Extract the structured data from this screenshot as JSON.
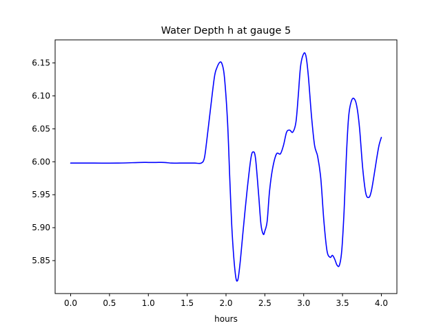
{
  "chart_data": {
    "type": "line",
    "title": "Water Depth h at gauge 5",
    "xlabel": "hours",
    "ylabel": "",
    "xlim": [
      -0.2,
      4.2
    ],
    "ylim": [
      5.8,
      6.185
    ],
    "xticks": [
      0.0,
      0.5,
      1.0,
      1.5,
      2.0,
      2.5,
      3.0,
      3.5,
      4.0
    ],
    "xtick_labels": [
      "0.0",
      "0.5",
      "1.0",
      "1.5",
      "2.0",
      "2.5",
      "3.0",
      "3.5",
      "4.0"
    ],
    "yticks": [
      5.85,
      5.9,
      5.95,
      6.0,
      6.05,
      6.1,
      6.15
    ],
    "ytick_labels": [
      "5.85",
      "5.90",
      "5.95",
      "6.00",
      "6.05",
      "6.10",
      "6.15"
    ],
    "grid": false,
    "series": [
      {
        "color": "#0000ff",
        "x": [
          0.0,
          0.3,
          0.6,
          0.9,
          1.0,
          1.1,
          1.2,
          1.3,
          1.4,
          1.5,
          1.6,
          1.68,
          1.72,
          1.75,
          1.8,
          1.85,
          1.88,
          1.92,
          1.95,
          1.98,
          2.02,
          2.05,
          2.08,
          2.12,
          2.15,
          2.18,
          2.22,
          2.27,
          2.32,
          2.35,
          2.38,
          2.42,
          2.45,
          2.48,
          2.5,
          2.53,
          2.56,
          2.6,
          2.65,
          2.7,
          2.74,
          2.78,
          2.82,
          2.86,
          2.9,
          2.93,
          2.96,
          3.0,
          3.03,
          3.06,
          3.1,
          3.14,
          3.18,
          3.22,
          3.26,
          3.3,
          3.34,
          3.37,
          3.4,
          3.43,
          3.46,
          3.49,
          3.52,
          3.55,
          3.58,
          3.62,
          3.66,
          3.69,
          3.72,
          3.76,
          3.8,
          3.84,
          3.87,
          3.9,
          3.94,
          3.97,
          4.0
        ],
        "y": [
          5.998,
          5.998,
          5.998,
          5.999,
          5.999,
          5.999,
          5.999,
          5.998,
          5.998,
          5.998,
          5.998,
          5.998,
          6.005,
          6.03,
          6.08,
          6.128,
          6.142,
          6.151,
          6.148,
          6.128,
          6.06,
          5.97,
          5.89,
          5.83,
          5.82,
          5.845,
          5.895,
          5.955,
          6.005,
          6.015,
          6.005,
          5.95,
          5.905,
          5.89,
          5.895,
          5.91,
          5.955,
          5.99,
          6.012,
          6.012,
          6.025,
          6.045,
          6.048,
          6.045,
          6.06,
          6.1,
          6.145,
          6.164,
          6.16,
          6.13,
          6.07,
          6.025,
          6.008,
          5.975,
          5.91,
          5.865,
          5.855,
          5.858,
          5.852,
          5.843,
          5.843,
          5.865,
          5.925,
          6.01,
          6.07,
          6.094,
          6.094,
          6.08,
          6.05,
          5.99,
          5.952,
          5.946,
          5.955,
          5.975,
          6.005,
          6.025,
          6.037
        ]
      }
    ]
  }
}
